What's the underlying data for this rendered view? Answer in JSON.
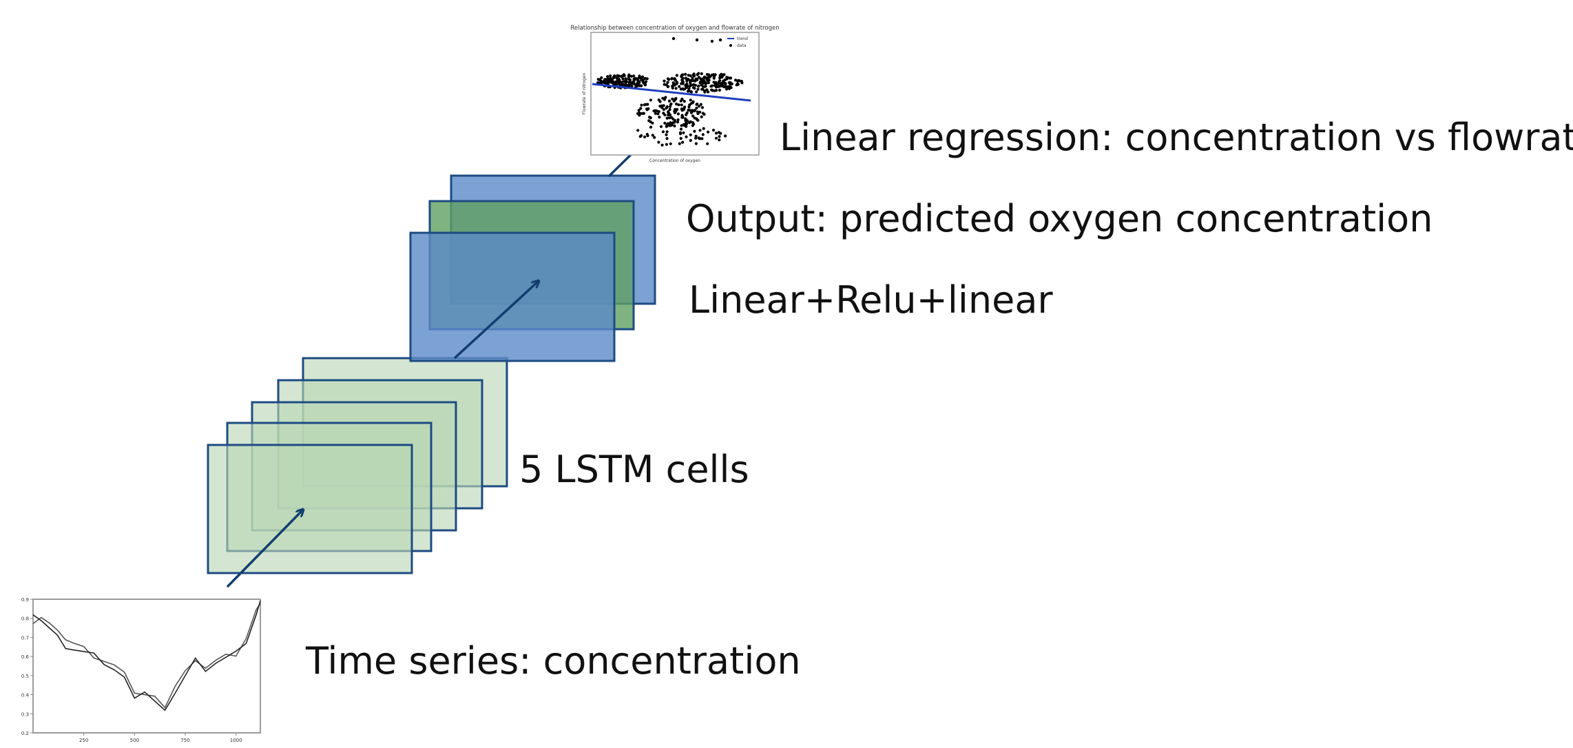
{
  "labels": {
    "time_series": "Time series: concentration",
    "lstm": "5 LSTM cells",
    "dense": "Linear+Relu+linear",
    "output": "Output: predicted oxygen concentration",
    "regression": "Linear regression: concentration vs flowrate"
  },
  "colors": {
    "lstm_fill": "#b9d6b5",
    "lstm_stroke": "#1d4b82",
    "dense_blue_fill": "#5b8ac8",
    "dense_green_fill": "#5fa062",
    "dense_stroke": "#1d4b82",
    "arrow": "#123d6e"
  },
  "chart_data": [
    {
      "type": "line",
      "x_ticks": [
        250,
        500,
        750,
        1000
      ],
      "y_ticks": [
        0.2,
        0.3,
        0.4,
        0.5,
        0.6,
        0.7,
        0.8,
        0.9
      ],
      "xlim": [
        0,
        1120
      ],
      "ylim": [
        0.2,
        0.9
      ],
      "series": [
        {
          "x": [
            0,
            40,
            80,
            120,
            160,
            200,
            250,
            300,
            350,
            400,
            450,
            500,
            550,
            600,
            650,
            700,
            750,
            800,
            850,
            900,
            950,
            1000,
            1050,
            1100,
            1120
          ],
          "values": [
            0.79,
            0.81,
            0.77,
            0.72,
            0.7,
            0.67,
            0.64,
            0.61,
            0.58,
            0.55,
            0.5,
            0.42,
            0.4,
            0.38,
            0.35,
            0.45,
            0.52,
            0.56,
            0.55,
            0.58,
            0.6,
            0.62,
            0.7,
            0.84,
            0.86
          ]
        },
        {
          "x": [
            0,
            40,
            80,
            120,
            160,
            200,
            250,
            300,
            350,
            400,
            450,
            500,
            550,
            600,
            650,
            700,
            750,
            800,
            850,
            900,
            950,
            1000,
            1050,
            1100,
            1120
          ],
          "values": [
            0.8,
            0.8,
            0.75,
            0.7,
            0.66,
            0.64,
            0.62,
            0.6,
            0.57,
            0.53,
            0.48,
            0.4,
            0.42,
            0.36,
            0.3,
            0.42,
            0.5,
            0.58,
            0.54,
            0.57,
            0.59,
            0.61,
            0.68,
            0.82,
            0.88
          ]
        }
      ]
    },
    {
      "type": "scatter",
      "title": "Relationship between concentration of oxygen and flowrate of nitrogen",
      "xlabel": "Concentration of oxygen",
      "ylabel": "Flowrate of nitrogen",
      "legend": [
        "trend",
        "data"
      ],
      "legend_position": "top-right",
      "trend": {
        "x": [
          0.0,
          1.0
        ],
        "y": [
          0.72,
          0.52
        ]
      },
      "xlim": [
        0,
        1
      ],
      "ylim": [
        0,
        1
      ]
    }
  ]
}
